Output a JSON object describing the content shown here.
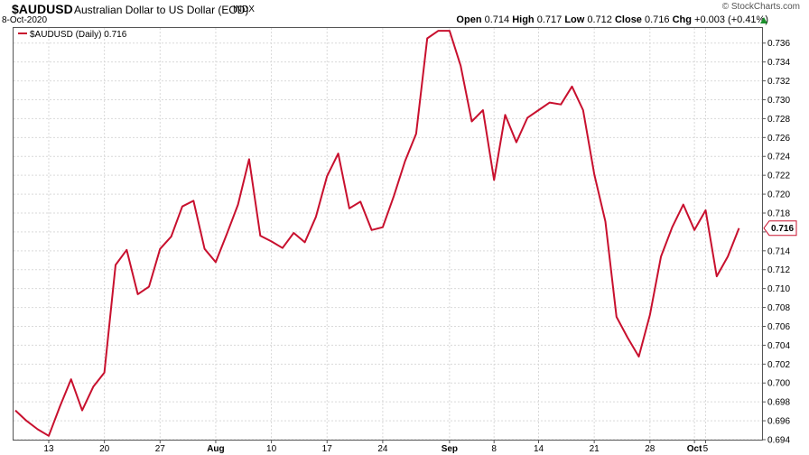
{
  "header": {
    "symbol": "$AUDUSD",
    "title": "Australian Dollar to US Dollar (EOD)",
    "exchange": "INDX",
    "date": "8-Oct-2020",
    "watermark": "© StockCharts.com",
    "open_label": "Open",
    "open": "0.714",
    "high_label": "High",
    "high": "0.717",
    "low_label": "Low",
    "low": "0.712",
    "close_label": "Close",
    "close": "0.716",
    "chg_label": "Chg",
    "chg": "+0.003 (+0.41%)"
  },
  "colors": {
    "line": "#c8102e",
    "grid": "#d9d9d9",
    "up": "#1a8f2a"
  },
  "chart_data": {
    "type": "line",
    "legend": "$AUDUSD (Daily) 0.716",
    "legend_position": "top-left",
    "last_value_label": "0.716",
    "grid": true,
    "ylim": [
      0.694,
      0.7376
    ],
    "y_ticks": [
      "0.736",
      "0.734",
      "0.732",
      "0.730",
      "0.728",
      "0.726",
      "0.724",
      "0.722",
      "0.720",
      "0.718",
      "0.716",
      "0.714",
      "0.712",
      "0.710",
      "0.708",
      "0.706",
      "0.704",
      "0.702",
      "0.700",
      "0.698",
      "0.696",
      "0.694"
    ],
    "x_ticks": [
      {
        "label": "13",
        "i": 3,
        "bold": false
      },
      {
        "label": "20",
        "i": 8,
        "bold": false
      },
      {
        "label": "27",
        "i": 13,
        "bold": false
      },
      {
        "label": "Aug",
        "i": 18,
        "bold": true
      },
      {
        "label": "10",
        "i": 23,
        "bold": false
      },
      {
        "label": "17",
        "i": 28,
        "bold": false
      },
      {
        "label": "24",
        "i": 33,
        "bold": false
      },
      {
        "label": "Sep",
        "i": 39,
        "bold": true
      },
      {
        "label": "8",
        "i": 43,
        "bold": false
      },
      {
        "label": "14",
        "i": 47,
        "bold": false
      },
      {
        "label": "21",
        "i": 52,
        "bold": false
      },
      {
        "label": "28",
        "i": 57,
        "bold": false
      },
      {
        "label": "Oct",
        "i": 61,
        "bold": true
      },
      {
        "label": "5",
        "i": 62,
        "bold": false
      }
    ],
    "series": [
      {
        "name": "$AUDUSD (Daily)",
        "values": [
          0.6971,
          0.696,
          0.6951,
          0.6944,
          0.6975,
          0.7004,
          0.6971,
          0.6996,
          0.7011,
          0.7125,
          0.7141,
          0.7094,
          0.7102,
          0.7142,
          0.7155,
          0.7187,
          0.7193,
          0.7142,
          0.7128,
          0.7158,
          0.7189,
          0.7237,
          0.7156,
          0.715,
          0.7143,
          0.7159,
          0.7149,
          0.7176,
          0.7219,
          0.7243,
          0.7185,
          0.7192,
          0.7162,
          0.7165,
          0.7198,
          0.7235,
          0.7264,
          0.7365,
          0.7373,
          0.7373,
          0.7336,
          0.7277,
          0.7289,
          0.7215,
          0.7284,
          0.7255,
          0.7281,
          0.7289,
          0.7297,
          0.7295,
          0.7314,
          0.7289,
          0.7221,
          0.7171,
          0.707,
          0.7048,
          0.7028,
          0.7072,
          0.7134,
          0.7165,
          0.7189,
          0.7162,
          0.7183,
          0.7113,
          0.7134,
          0.7164
        ]
      }
    ]
  }
}
